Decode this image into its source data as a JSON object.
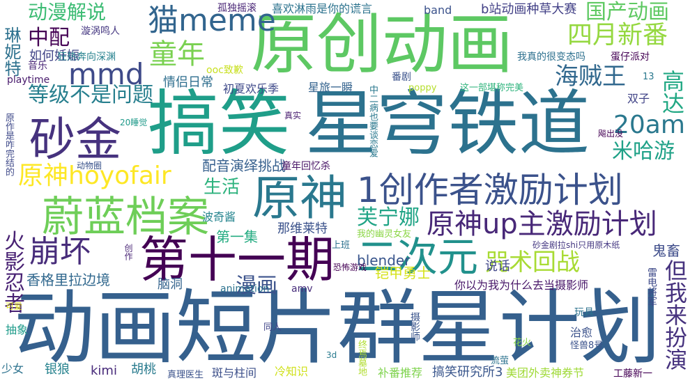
{
  "words": [
    {
      "text": "原创动画",
      "color": "#5dc863"
    },
    {
      "text": "搞笑",
      "color": "#1f9e89"
    },
    {
      "text": "星穹铁道",
      "color": "#2c728e"
    },
    {
      "text": "动画短片群星计划",
      "color": "#35608d"
    },
    {
      "text": "砂金",
      "color": "#46327e"
    },
    {
      "text": "第十一期",
      "color": "#440154"
    },
    {
      "text": "1创作者激励计划",
      "color": "#3b528b"
    },
    {
      "text": "原神",
      "color": "#2a788e"
    },
    {
      "text": "蔚蓝档案",
      "color": "#6ece58"
    },
    {
      "text": "二次元",
      "color": "#21918c"
    },
    {
      "text": "原神up主激励计划",
      "color": "#482878"
    },
    {
      "text": "崩坏",
      "color": "#472c7a"
    },
    {
      "text": "猫meme",
      "color": "#32658e"
    },
    {
      "text": "mmd",
      "color": "#3e4a89"
    },
    {
      "text": "童年",
      "color": "#7ad151"
    },
    {
      "text": "四月新番",
      "color": "#95d840"
    },
    {
      "text": "海贼王",
      "color": "#31688e"
    },
    {
      "text": "20am",
      "color": "#2a788e"
    },
    {
      "text": "中配",
      "color": "#440154"
    },
    {
      "text": "等级不是问题",
      "color": "#277f8e"
    },
    {
      "text": "原神hoyofair",
      "color": "#fde725"
    },
    {
      "text": "动漫解说",
      "color": "#3dbc74"
    },
    {
      "text": "国产动画",
      "color": "#5ec962"
    },
    {
      "text": "咒术回战",
      "color": "#a8db34"
    },
    {
      "text": "米哈游",
      "color": "#1fa187"
    },
    {
      "text": "芙宁娜",
      "color": "#20a486"
    },
    {
      "text": "漫画",
      "color": "#3b528b"
    },
    {
      "text": "生活",
      "color": "#2db27d"
    },
    {
      "text": "但我来扮演",
      "color": "#46327e"
    },
    {
      "text": "高达",
      "color": "#22a884"
    },
    {
      "text": "火影忍者",
      "color": "#482173"
    },
    {
      "text": "配音演绎挑战",
      "color": "#355f8d"
    },
    {
      "text": "第一集",
      "color": "#25ac82"
    },
    {
      "text": "那维莱特",
      "color": "#3b528b"
    },
    {
      "text": "香格里拉边境",
      "color": "#31688e"
    },
    {
      "text": "blender",
      "color": "#39558c"
    },
    {
      "text": "铠甲勇士",
      "color": "#d5e21a"
    },
    {
      "text": "说话",
      "color": "#404688"
    },
    {
      "text": "鬼畜",
      "color": "#3e4c8a"
    },
    {
      "text": "情侣日常",
      "color": "#2e6e8e"
    },
    {
      "text": "如何妊娠",
      "color": "#414487"
    },
    {
      "text": "琳妮特",
      "color": "#2d718e"
    },
    {
      "text": "孤独摇滚",
      "color": "#482475"
    },
    {
      "text": "喜欢淋雨是你的谎言",
      "color": "#2c738e"
    },
    {
      "text": "band",
      "color": "#3b528b"
    },
    {
      "text": "b站动画种草大赛",
      "color": "#424086"
    },
    {
      "text": "漩涡鸣人",
      "color": "#453781"
    },
    {
      "text": "狂热奔向深渊",
      "color": "#26818e"
    },
    {
      "text": "音乐",
      "color": "#482576"
    },
    {
      "text": "playtime",
      "color": "#481a6c"
    },
    {
      "text": "ooc致歉",
      "color": "#c8e020"
    },
    {
      "text": "初夏欢乐季",
      "color": "#3e4989"
    },
    {
      "text": "星旅一瞬",
      "color": "#33628d"
    },
    {
      "text": "我真的很变态吗",
      "color": "#2d708e"
    },
    {
      "text": "蛋仔派对",
      "color": "#440154"
    },
    {
      "text": "番剧",
      "color": "#3b528b"
    },
    {
      "text": "poppy",
      "color": "#b5de2b"
    },
    {
      "text": "这一部堪称完美",
      "color": "#2eb37c"
    },
    {
      "text": "13",
      "color": "#2a788e"
    },
    {
      "text": "双子",
      "color": "#414487"
    },
    {
      "text": "20睡觉",
      "color": "#1f9a8a"
    },
    {
      "text": "真实",
      "color": "#481d6f"
    },
    {
      "text": "童年回忆杀",
      "color": "#471365"
    },
    {
      "text": "中二病也要谈恋爱",
      "color": "#2a788e"
    },
    {
      "text": "原作是咋完结的",
      "color": "#3e4989"
    },
    {
      "text": "动物圈",
      "color": "#3a538b"
    },
    {
      "text": "波奇酱",
      "color": "#25848e"
    },
    {
      "text": "我的幽灵女友",
      "color": "#8bd646"
    },
    {
      "text": "上班",
      "color": "#2c718e"
    },
    {
      "text": "恐怖游戏",
      "color": "#440154"
    },
    {
      "text": "砂金剧拉shi只用原木纸",
      "color": "#453882"
    },
    {
      "text": "创作",
      "color": "#482475"
    },
    {
      "text": "脑洞",
      "color": "#33638d"
    },
    {
      "text": "animation",
      "color": "#2c728e"
    },
    {
      "text": "amv",
      "color": "#472d7b"
    },
    {
      "text": "你以为我为什么去当摄影师",
      "color": "#481769"
    },
    {
      "text": "雷电将军",
      "color": "#3e4a89"
    },
    {
      "text": "可爱",
      "color": "#e2e418"
    },
    {
      "text": "玩具",
      "color": "#2c728e"
    },
    {
      "text": "抽象",
      "color": "#1e9b8a"
    },
    {
      "text": "同人",
      "color": "#404588"
    },
    {
      "text": "摄影师",
      "color": "#3a548c"
    },
    {
      "text": "怪兽8号",
      "color": "#3b528b"
    },
    {
      "text": "治愈",
      "color": "#3b528b"
    },
    {
      "text": "花火",
      "color": "#89d548"
    },
    {
      "text": "少女",
      "color": "#2c728e"
    },
    {
      "text": "银狼",
      "color": "#26828e"
    },
    {
      "text": "kimi",
      "color": "#472a7a"
    },
    {
      "text": "胡桃",
      "color": "#297b8e"
    },
    {
      "text": "真理医生",
      "color": "#3b528b"
    },
    {
      "text": "斑与柱间",
      "color": "#3c4f8a"
    },
    {
      "text": "冷知识",
      "color": "#d0e11c"
    },
    {
      "text": "3d",
      "color": "#297a8e"
    },
    {
      "text": "终焉墓地",
      "color": "#b0dd2f"
    },
    {
      "text": "补番推荐",
      "color": "#7fd34e"
    },
    {
      "text": "搞笑研究所3",
      "color": "#39568c"
    },
    {
      "text": "美团外卖神券节",
      "color": "#a0da39"
    },
    {
      "text": "流萤",
      "color": "#2c738e"
    },
    {
      "text": "工藤新一",
      "color": "#440154"
    },
    {
      "text": "飚出没",
      "color": "#440154"
    }
  ]
}
